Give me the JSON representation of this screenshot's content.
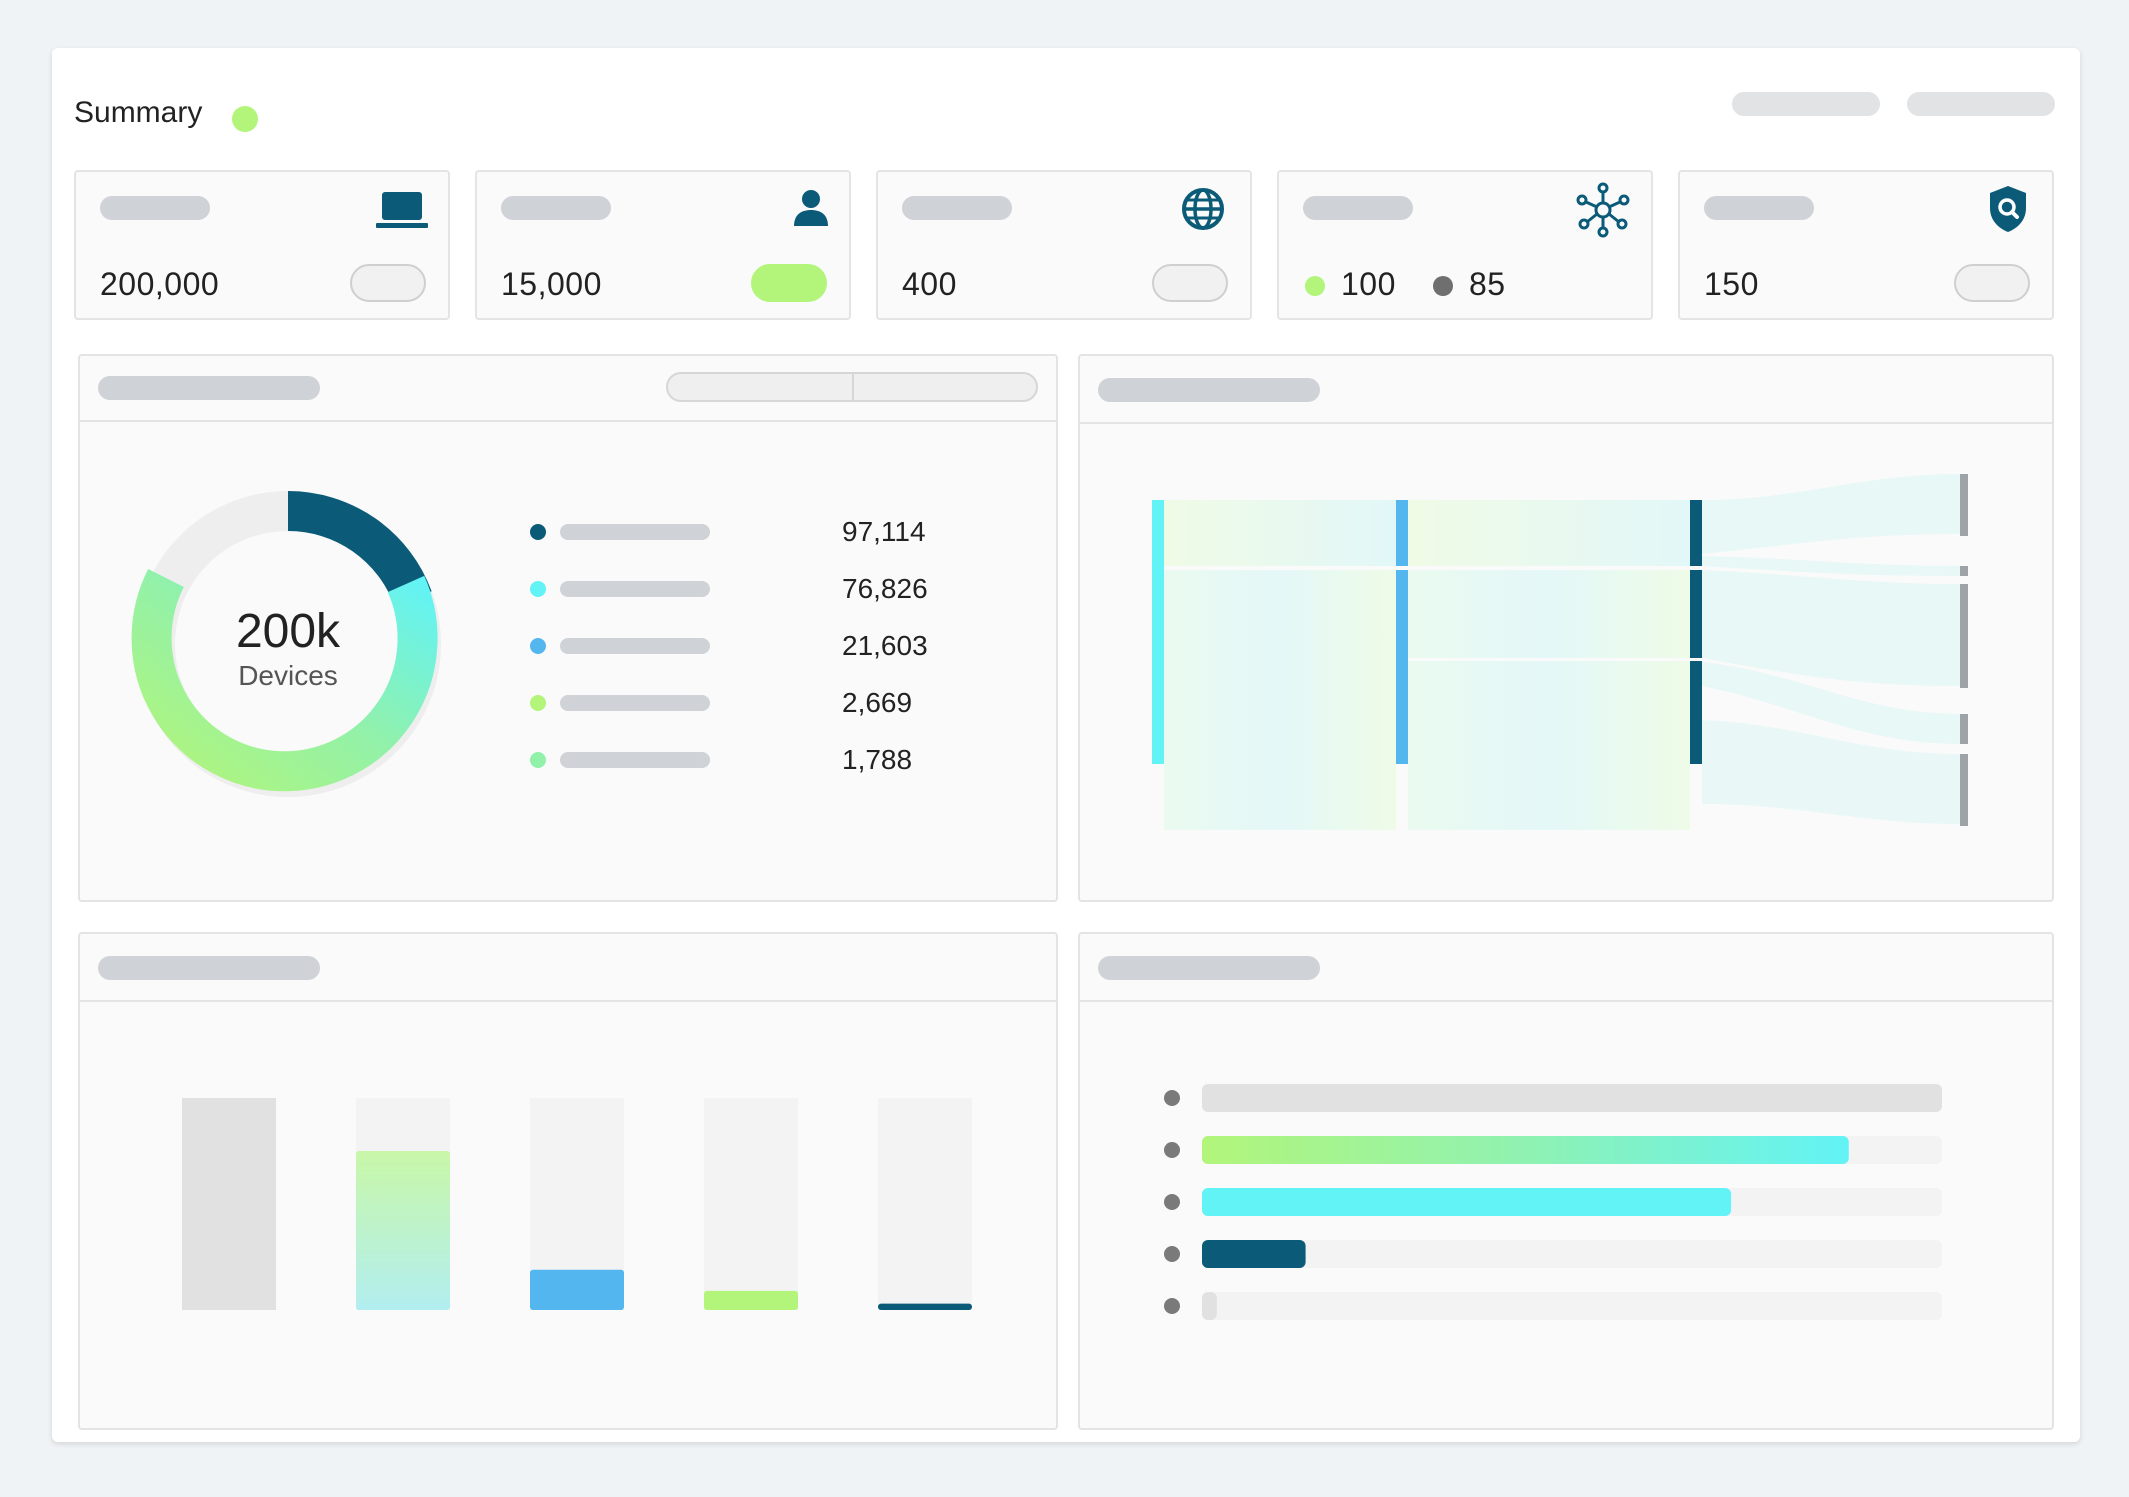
{
  "header": {
    "title": "Summary",
    "status_color": "#b2f57a",
    "actions": [
      "placeholder-action-1",
      "placeholder-action-2"
    ]
  },
  "kpis": [
    {
      "icon": "laptop-icon",
      "value": "200,000",
      "toggle_on": false
    },
    {
      "icon": "user-icon",
      "value": "15,000",
      "toggle_on": true
    },
    {
      "icon": "globe-icon",
      "value": "400",
      "toggle_on": false
    },
    {
      "icon": "network-icon",
      "value_a": "100",
      "value_b": "85",
      "dot_a_color": "#b2f57a",
      "dot_b_color": "#6f6f6f"
    },
    {
      "icon": "shield-search-icon",
      "value": "150",
      "toggle_on": false
    }
  ],
  "donut_panel": {
    "center_value": "200k",
    "center_label": "Devices",
    "legend": [
      {
        "color": "#0b5b78",
        "value": "97,114"
      },
      {
        "color": "#62f3f6",
        "value": "76,826"
      },
      {
        "color": "#54b6ee",
        "value": "21,603"
      },
      {
        "color": "#b2f57a",
        "value": "2,669"
      },
      {
        "color": "#92f1a9",
        "value": "1,788"
      }
    ]
  },
  "chart_data": [
    {
      "type": "pie",
      "categories": [
        "",
        "",
        "",
        "",
        ""
      ],
      "values": [
        97114,
        76826,
        21603,
        2669,
        1788
      ],
      "title": ""
    },
    {
      "type": "bar",
      "categories": [
        "",
        "",
        "",
        "",
        ""
      ],
      "values": [
        1.0,
        0.75,
        0.19,
        0.09,
        0.03
      ],
      "title": "",
      "ylim": [
        0,
        1
      ]
    },
    {
      "type": "bar",
      "orientation": "horizontal",
      "categories": [
        "",
        "",
        "",
        "",
        ""
      ],
      "values": [
        1.0,
        0.874,
        0.715,
        0.14,
        0.02
      ],
      "title": "",
      "xlim": [
        0,
        1
      ]
    }
  ],
  "colors": {
    "dark_teal": "#0b5b78",
    "cyan": "#62f3f6",
    "blue": "#54b6ee",
    "lime": "#b2f57a",
    "mint": "#92f1a9",
    "grey_bar": "#e1e1e1",
    "track": "#f3f3f3"
  }
}
